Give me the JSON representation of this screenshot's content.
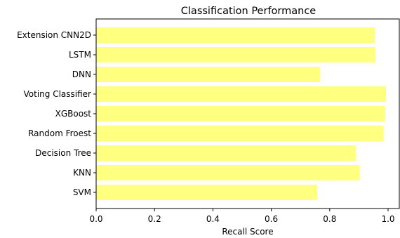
{
  "chart_data": {
    "type": "bar",
    "orientation": "horizontal",
    "title": "Classification Performance",
    "xlabel": "Recall Score",
    "ylabel": "",
    "xlim": [
      0,
      1.0
    ],
    "xticks": [
      "0.0",
      "0.2",
      "0.4",
      "0.6",
      "0.8",
      "1.0"
    ],
    "grid": false,
    "bar_color": "#ffff80",
    "categories": [
      "Extension CNN2D",
      "LSTM",
      "DNN",
      "Voting Classifier",
      "XGBoost",
      "Random Froest",
      "Decision Tree",
      "KNN",
      "SVM"
    ],
    "values": [
      0.955,
      0.957,
      0.768,
      0.993,
      0.99,
      0.985,
      0.89,
      0.903,
      0.757
    ]
  }
}
